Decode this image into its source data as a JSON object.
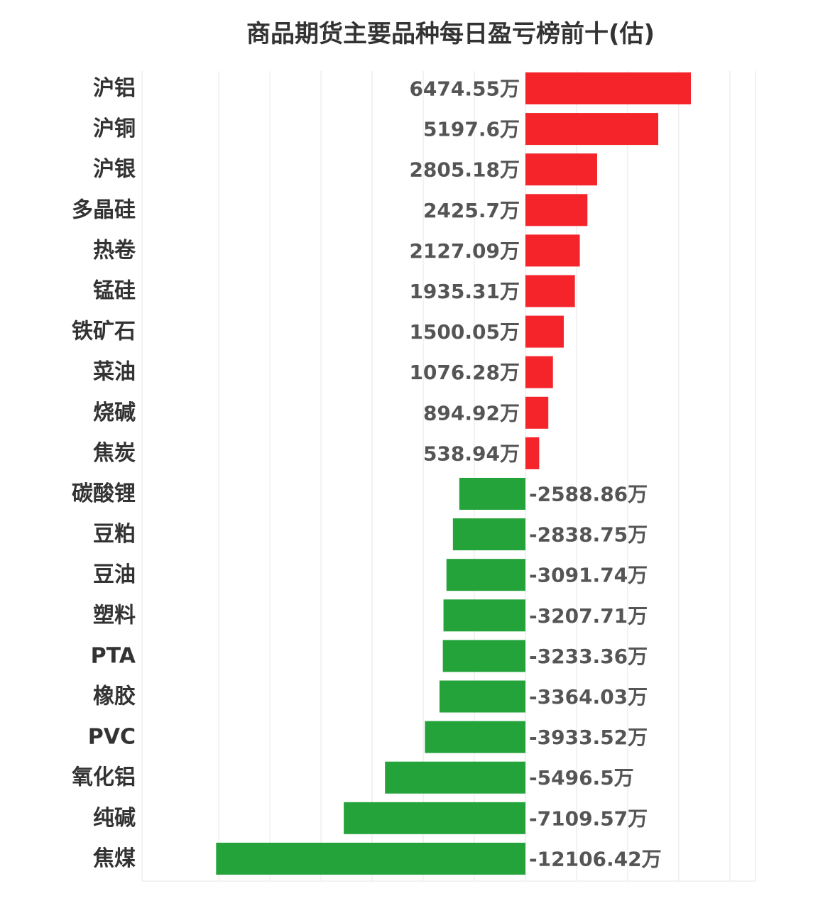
{
  "chart_data": {
    "type": "bar",
    "orientation": "horizontal",
    "title": "商品期货主要品种每日盈亏榜前十(估)",
    "unit": "万",
    "grid": true,
    "colors": {
      "positive": "#f5232a",
      "negative": "#23a339",
      "text": "#333333",
      "value_text": "#555555",
      "grid": "#e6e6e6"
    },
    "xlim": [
      -13000,
      15000
    ],
    "categories": [
      "沪铝",
      "沪铜",
      "沪银",
      "多晶硅",
      "热卷",
      "锰硅",
      "铁矿石",
      "菜油",
      "烧碱",
      "焦炭",
      "碳酸锂",
      "豆粕",
      "豆油",
      "塑料",
      "PTA",
      "橡胶",
      "PVC",
      "氧化铝",
      "纯碱",
      "焦煤"
    ],
    "values": [
      6474.55,
      5197.6,
      2805.18,
      2425.7,
      2127.09,
      1935.31,
      1500.05,
      1076.28,
      894.92,
      538.94,
      -2588.86,
      -2838.75,
      -3091.74,
      -3207.71,
      -3233.36,
      -3364.03,
      -3933.52,
      -5496.5,
      -7109.57,
      -12106.42
    ],
    "value_labels": [
      "6474.55万",
      "5197.6万",
      "2805.18万",
      "2425.7万",
      "2127.09万",
      "1935.31万",
      "1500.05万",
      "1076.28万",
      "894.92万",
      "538.94万",
      "-2588.86万",
      "-2838.75万",
      "-3091.74万",
      "-3207.71万",
      "-3233.36万",
      "-3364.03万",
      "-3933.52万",
      "-5496.5万",
      "-7109.57万",
      "-12106.42万"
    ]
  }
}
